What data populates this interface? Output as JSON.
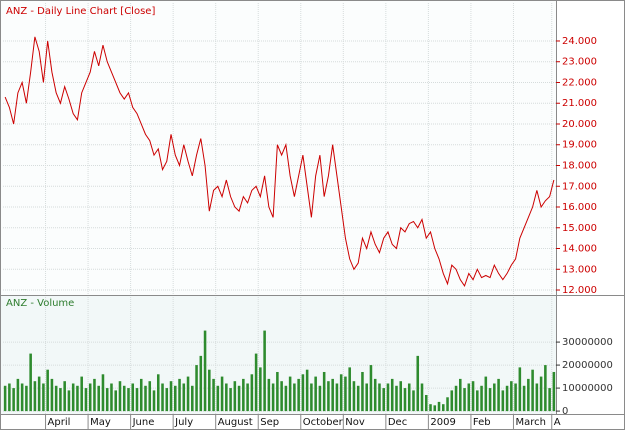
{
  "chart_data": [
    {
      "type": "line",
      "title": "ANZ - Daily Line Chart [Close]",
      "color": "#cc0000",
      "grid": true,
      "ylim": [
        11.76,
        25.83
      ],
      "yticks": [
        {
          "value": 12,
          "label": "12.000"
        },
        {
          "value": 13,
          "label": "13.000"
        },
        {
          "value": 14,
          "label": "14.000"
        },
        {
          "value": 15,
          "label": "15.000"
        },
        {
          "value": 16,
          "label": "16.000"
        },
        {
          "value": 17,
          "label": "17.000"
        },
        {
          "value": 18,
          "label": "18.000"
        },
        {
          "value": 19,
          "label": "19.000"
        },
        {
          "value": 20,
          "label": "20.000"
        },
        {
          "value": 21,
          "label": "21.000"
        },
        {
          "value": 22,
          "label": "22.000"
        },
        {
          "value": 23,
          "label": "23.000"
        },
        {
          "value": 24,
          "label": "24.000"
        }
      ],
      "values": [
        21.3,
        20.8,
        20.0,
        21.5,
        22.0,
        21.0,
        22.5,
        24.2,
        23.5,
        22.0,
        24.0,
        22.5,
        21.5,
        21.0,
        21.8,
        21.2,
        20.5,
        20.2,
        21.5,
        22.0,
        22.5,
        23.5,
        22.8,
        23.8,
        23.0,
        22.5,
        22.0,
        21.5,
        21.2,
        21.5,
        20.8,
        20.5,
        20.0,
        19.5,
        19.2,
        18.5,
        18.8,
        17.8,
        18.2,
        19.5,
        18.5,
        18.0,
        19.0,
        18.2,
        17.5,
        18.5,
        19.3,
        18.0,
        15.8,
        16.8,
        17.0,
        16.5,
        17.3,
        16.5,
        16.0,
        15.8,
        16.5,
        16.2,
        16.8,
        17.0,
        16.5,
        17.5,
        16.0,
        15.5,
        19.0,
        18.5,
        19.0,
        17.5,
        16.5,
        17.5,
        18.5,
        17.0,
        15.5,
        17.5,
        18.5,
        16.5,
        17.5,
        19.0,
        17.5,
        16.0,
        14.5,
        13.5,
        13.0,
        13.3,
        14.5,
        14.0,
        14.8,
        14.2,
        13.8,
        14.5,
        14.8,
        14.2,
        14.0,
        15.0,
        14.8,
        15.2,
        15.3,
        15.0,
        15.4,
        14.5,
        14.8,
        14.0,
        13.5,
        12.8,
        12.3,
        13.2,
        13.0,
        12.5,
        12.2,
        12.8,
        12.5,
        13.0,
        12.6,
        12.7,
        12.6,
        13.2,
        12.8,
        12.5,
        12.8,
        13.2,
        13.5,
        14.5,
        15.0,
        15.5,
        16.0,
        16.8,
        16.0,
        16.3,
        16.5,
        17.3
      ]
    },
    {
      "type": "bar",
      "title": "ANZ - Volume",
      "color": "#2e8b2e",
      "grid": true,
      "ylim": [
        -1700000,
        49600000
      ],
      "yticks": [
        0,
        10000000,
        20000000,
        30000000
      ],
      "categories": [
        null,
        null,
        null,
        null,
        null,
        null,
        null,
        null,
        null,
        null,
        "April",
        null,
        null,
        null,
        null,
        null,
        null,
        null,
        null,
        null,
        "May",
        null,
        null,
        null,
        null,
        null,
        null,
        null,
        null,
        null,
        "June",
        null,
        null,
        null,
        null,
        null,
        null,
        null,
        null,
        null,
        "July",
        null,
        null,
        null,
        null,
        null,
        null,
        null,
        null,
        null,
        "August",
        null,
        null,
        null,
        null,
        null,
        null,
        null,
        null,
        null,
        "Sep",
        null,
        null,
        null,
        null,
        null,
        null,
        null,
        null,
        null,
        "October",
        null,
        null,
        null,
        null,
        null,
        null,
        null,
        null,
        null,
        "Nov",
        null,
        null,
        null,
        null,
        null,
        null,
        null,
        null,
        null,
        "Dec",
        null,
        null,
        null,
        null,
        null,
        null,
        null,
        null,
        null,
        "2009",
        null,
        null,
        null,
        null,
        null,
        null,
        null,
        null,
        null,
        "Feb",
        null,
        null,
        null,
        null,
        null,
        null,
        null,
        null,
        null,
        "March",
        null,
        null,
        null,
        null,
        null,
        null,
        null,
        null,
        "A"
      ],
      "values": [
        11000000,
        12000000,
        10000000,
        14000000,
        12000000,
        11000000,
        25000000,
        13000000,
        15000000,
        12000000,
        18000000,
        14000000,
        11000000,
        10000000,
        13000000,
        9000000,
        12000000,
        11000000,
        15000000,
        10000000,
        12000000,
        14000000,
        11000000,
        16000000,
        10000000,
        12000000,
        9000000,
        13000000,
        11000000,
        10000000,
        12000000,
        10000000,
        14000000,
        11000000,
        13000000,
        9000000,
        16000000,
        12000000,
        10000000,
        13000000,
        11000000,
        14000000,
        12000000,
        15000000,
        11000000,
        20000000,
        24000000,
        35000000,
        18000000,
        14000000,
        11000000,
        15000000,
        12000000,
        10000000,
        13000000,
        11000000,
        14000000,
        12000000,
        16000000,
        25000000,
        19000000,
        35000000,
        14000000,
        12000000,
        17000000,
        13000000,
        11000000,
        15000000,
        12000000,
        14000000,
        16000000,
        18000000,
        12000000,
        15000000,
        11000000,
        17000000,
        13000000,
        14000000,
        12000000,
        16000000,
        15000000,
        19000000,
        13000000,
        11000000,
        17000000,
        12000000,
        20000000,
        14000000,
        12000000,
        10000000,
        12000000,
        14000000,
        11000000,
        13000000,
        10000000,
        12000000,
        9000000,
        24000000,
        12000000,
        7000000,
        3000000,
        2500000,
        4000000,
        3000000,
        6000000,
        9000000,
        11000000,
        14000000,
        10000000,
        12000000,
        13000000,
        9000000,
        11000000,
        15000000,
        10000000,
        12000000,
        14000000,
        9000000,
        11000000,
        13000000,
        12000000,
        19000000,
        11000000,
        14000000,
        18000000,
        12000000,
        15000000,
        20000000,
        10000000,
        17000000
      ]
    }
  ]
}
